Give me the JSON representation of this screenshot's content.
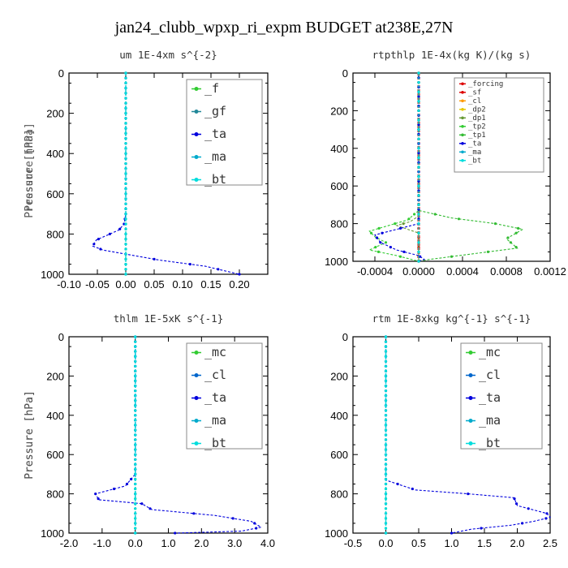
{
  "figure": {
    "title": "jan24_clubb_wpxp_ri_expm  BUDGET at238E,27N"
  },
  "colors": {
    "red": "#dd0000",
    "orange": "#ff9900",
    "yellow": "#e6c800",
    "olive": "#669933",
    "green": "#33cc33",
    "teal": "#228899",
    "blue": "#0000dd",
    "dblue": "#0066cc",
    "cyan": "#00dddd",
    "ltgreen": "#66cc33"
  },
  "chart_data": [
    {
      "type": "line",
      "title": "um  1E-4xm s^{-2}",
      "ylabel": "Pressure [hPa]",
      "xlim": [
        -0.1,
        0.25
      ],
      "ylim": [
        1000,
        0
      ],
      "xticks": [
        "-0.10",
        "-0.05",
        "0.00",
        "0.05",
        "0.10",
        "0.15",
        "0.20"
      ],
      "yticks": [
        "0",
        "200",
        "400",
        "600",
        "800",
        "1000"
      ],
      "series": [
        {
          "name": "_f",
          "color": "#33cc33",
          "x": [
            0,
            0,
            0,
            0,
            0,
            0,
            0,
            0,
            0,
            0,
            0
          ],
          "y": [
            0,
            100,
            200,
            300,
            400,
            500,
            600,
            700,
            800,
            900,
            1000
          ]
        },
        {
          "name": "_gf",
          "color": "#228899",
          "x": [
            0,
            0,
            0,
            0,
            0,
            0,
            0,
            0,
            0,
            0,
            0
          ],
          "y": [
            0,
            100,
            200,
            300,
            400,
            500,
            600,
            700,
            800,
            900,
            1000
          ]
        },
        {
          "name": "_ta",
          "color": "#0000dd",
          "x": [
            0,
            0,
            0,
            -0.003,
            -0.012,
            -0.028,
            -0.052,
            -0.058,
            -0.04,
            0.06,
            0.14,
            0.2
          ],
          "y": [
            0,
            400,
            700,
            750,
            780,
            800,
            830,
            860,
            880,
            930,
            960,
            1000
          ]
        },
        {
          "name": "_ma",
          "color": "#00aacc",
          "x": [
            0,
            0,
            0,
            0,
            0,
            0,
            0,
            0
          ],
          "y": [
            0,
            200,
            400,
            600,
            800,
            900,
            950,
            1000
          ]
        },
        {
          "name": "_bt",
          "color": "#00dddd",
          "x": [
            0,
            0,
            0,
            0,
            0,
            0,
            0,
            0,
            0,
            0,
            0
          ],
          "y": [
            0,
            100,
            200,
            300,
            400,
            500,
            600,
            700,
            800,
            900,
            1000
          ]
        }
      ]
    },
    {
      "type": "line",
      "title": "rtpthlp  1E-4x(kg K)/(kg s)",
      "ylabel": "Pressure [hPa]",
      "xlim": [
        -0.0006,
        0.0012
      ],
      "ylim": [
        1000,
        0
      ],
      "xticks": [
        "-0.0004",
        "0.0000",
        "0.0004",
        "0.0008",
        "0.0012"
      ],
      "yticks": [
        "0",
        "200",
        "400",
        "600",
        "800",
        "1000"
      ],
      "series": [
        {
          "name": "_forcing",
          "color": "#dd0000",
          "x": [
            0,
            0,
            0,
            0,
            0,
            0,
            0,
            0,
            0,
            0,
            0
          ],
          "y": [
            0,
            100,
            200,
            300,
            400,
            500,
            600,
            700,
            800,
            900,
            1000
          ]
        },
        {
          "name": "_sf",
          "color": "#dd0000",
          "x": [
            0,
            0,
            0,
            0,
            0,
            0,
            0,
            0,
            0,
            0,
            0
          ],
          "y": [
            0,
            100,
            200,
            300,
            400,
            500,
            600,
            700,
            800,
            900,
            1000
          ]
        },
        {
          "name": "_cl",
          "color": "#ff9900",
          "x": [
            0,
            0,
            0,
            0,
            0,
            0
          ],
          "y": [
            0,
            200,
            400,
            600,
            800,
            1000
          ]
        },
        {
          "name": "_dp2",
          "color": "#e6c800",
          "x": [
            0,
            0,
            0,
            0,
            0,
            0
          ],
          "y": [
            0,
            200,
            400,
            600,
            800,
            1000
          ]
        },
        {
          "name": "_dp1",
          "color": "#669933",
          "x": [
            0,
            0,
            -8e-05,
            -0.0002,
            -0.0001,
            0,
            0
          ],
          "y": [
            0,
            760,
            790,
            810,
            830,
            850,
            1000
          ]
        },
        {
          "name": "_tp2",
          "color": "#33cc33",
          "x": [
            0,
            0,
            -0.0001,
            -0.00045,
            -0.0004,
            -0.0003,
            -0.00045,
            -0.0002,
            0
          ],
          "y": [
            0,
            730,
            780,
            840,
            870,
            900,
            940,
            970,
            1000
          ]
        },
        {
          "name": "_tp1",
          "color": "#33bb33",
          "x": [
            0,
            0,
            0.0003,
            0.0007,
            0.00095,
            0.0008,
            0.0009,
            0.0005,
            0.0001,
            0
          ],
          "y": [
            0,
            730,
            770,
            800,
            830,
            880,
            930,
            960,
            990,
            1000
          ]
        },
        {
          "name": "_ta",
          "color": "#0000dd",
          "x": [
            0,
            0,
            -0.0002,
            -0.0004,
            -0.00035,
            -0.0002,
            0,
            5e-05,
            0
          ],
          "y": [
            0,
            800,
            830,
            860,
            900,
            940,
            970,
            990,
            1000
          ]
        },
        {
          "name": "_ma",
          "color": "#00aacc",
          "x": [
            0,
            0,
            0,
            0,
            0,
            0
          ],
          "y": [
            0,
            200,
            400,
            600,
            800,
            1000
          ]
        },
        {
          "name": "_bt",
          "color": "#00dddd",
          "x": [
            0,
            0,
            0,
            0,
            0,
            0
          ],
          "y": [
            0,
            200,
            400,
            600,
            800,
            1000
          ]
        }
      ]
    },
    {
      "type": "line",
      "title": "thlm  1E-5xK s^{-1}",
      "ylabel": "Pressure [hPa]",
      "xlim": [
        -2.0,
        4.0
      ],
      "ylim": [
        1000,
        0
      ],
      "xticks": [
        "-2.0",
        "-1.0",
        "0.0",
        "1.0",
        "2.0",
        "3.0",
        "4.0"
      ],
      "yticks": [
        "0",
        "200",
        "400",
        "600",
        "800",
        "1000"
      ],
      "series": [
        {
          "name": "_mc",
          "color": "#33cc33",
          "x": [
            0,
            0,
            0,
            0,
            0,
            0,
            0,
            0,
            0,
            0,
            0
          ],
          "y": [
            0,
            100,
            200,
            300,
            400,
            500,
            600,
            700,
            800,
            900,
            1000
          ]
        },
        {
          "name": "_cl",
          "color": "#0066cc",
          "x": [
            0,
            0,
            0,
            0,
            0,
            0
          ],
          "y": [
            0,
            200,
            400,
            600,
            800,
            1000
          ]
        },
        {
          "name": "_ta",
          "color": "#0000dd",
          "x": [
            0,
            0,
            -0.3,
            -1.2,
            -1.1,
            0.2,
            0.5,
            2.4,
            3.5,
            3.8,
            3.2,
            1.2
          ],
          "y": [
            0,
            700,
            760,
            800,
            830,
            850,
            880,
            910,
            940,
            970,
            990,
            1000
          ]
        },
        {
          "name": "_ma",
          "color": "#00aacc",
          "x": [
            0,
            0,
            0,
            0,
            0,
            0
          ],
          "y": [
            0,
            200,
            400,
            600,
            800,
            1000
          ]
        },
        {
          "name": "_bt",
          "color": "#00dddd",
          "x": [
            0,
            0,
            0,
            0,
            0,
            0,
            0,
            0,
            0,
            0,
            0
          ],
          "y": [
            0,
            100,
            200,
            300,
            400,
            500,
            600,
            700,
            800,
            900,
            1000
          ]
        }
      ]
    },
    {
      "type": "line",
      "title": "rtm  1E-8xkg kg^{-1} s^{-1}",
      "ylabel": "Pressure [hPa]",
      "xlim": [
        -0.5,
        2.5
      ],
      "ylim": [
        1000,
        0
      ],
      "xticks": [
        "-0.5",
        "0.0",
        "0.5",
        "1.0",
        "1.5",
        "2.0",
        "2.5"
      ],
      "yticks": [
        "0",
        "200",
        "400",
        "600",
        "800",
        "1000"
      ],
      "series": [
        {
          "name": "_mc",
          "color": "#33cc33",
          "x": [
            0,
            0,
            0,
            0,
            0,
            0,
            0,
            0,
            0,
            0,
            0
          ],
          "y": [
            0,
            100,
            200,
            300,
            400,
            500,
            600,
            700,
            800,
            900,
            1000
          ]
        },
        {
          "name": "_cl",
          "color": "#0066cc",
          "x": [
            0,
            0,
            0,
            0,
            0,
            0
          ],
          "y": [
            0,
            200,
            400,
            600,
            800,
            1000
          ]
        },
        {
          "name": "_ta",
          "color": "#0000dd",
          "x": [
            0,
            0,
            0.45,
            1.25,
            1.95,
            2.0,
            2.45,
            2.5,
            2.25,
            1.9,
            1.3,
            1.0
          ],
          "y": [
            0,
            730,
            780,
            800,
            820,
            860,
            900,
            920,
            940,
            960,
            980,
            1000
          ]
        },
        {
          "name": "_ma",
          "color": "#00aacc",
          "x": [
            0,
            0,
            0,
            0,
            0,
            0
          ],
          "y": [
            0,
            200,
            400,
            600,
            800,
            1000
          ]
        },
        {
          "name": "_bt",
          "color": "#00dddd",
          "x": [
            0,
            0,
            0,
            0,
            0,
            0,
            0,
            0,
            0,
            0,
            0
          ],
          "y": [
            0,
            100,
            200,
            300,
            400,
            500,
            600,
            700,
            800,
            900,
            1000
          ]
        }
      ]
    }
  ]
}
